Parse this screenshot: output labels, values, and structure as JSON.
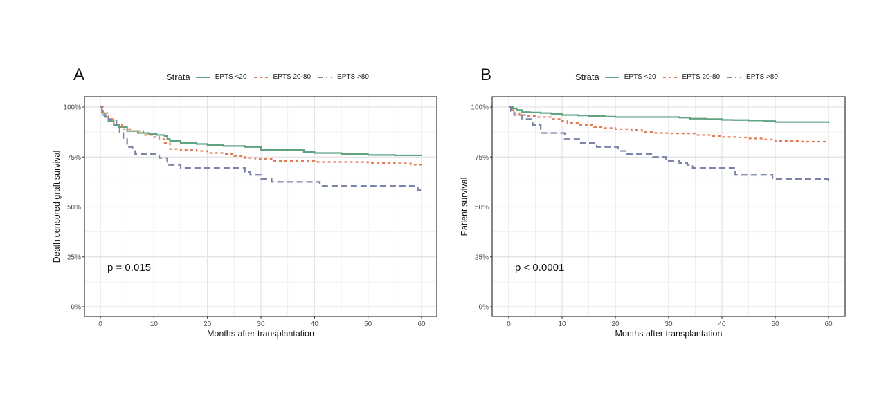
{
  "chart_data": [
    {
      "type": "line",
      "step": true,
      "panel_label": "A",
      "title": "",
      "xlabel": "Months after transplantation",
      "ylabel": "Death censored graft survival",
      "xlim": [
        0,
        60
      ],
      "ylim": [
        0,
        100
      ],
      "xticks": [
        0,
        10,
        20,
        30,
        40,
        50,
        60
      ],
      "xtick_labels": [
        "0",
        "10",
        "20",
        "30",
        "40",
        "50",
        "60"
      ],
      "yticks": [
        0,
        25,
        50,
        75,
        100
      ],
      "ytick_labels": [
        "0%",
        "25%",
        "50%",
        "75%",
        "100%"
      ],
      "grid": true,
      "legend_title": "Strata",
      "legend_position": "top",
      "annotation": "p = 0.015",
      "series": [
        {
          "name": "EPTS <20",
          "color": "#5fa382",
          "dash": "solid",
          "x": [
            0,
            0.3,
            0.8,
            1.5,
            2.5,
            3.5,
            5,
            7,
            9,
            10.5,
            12,
            12.5,
            13,
            15,
            18,
            20,
            23,
            27,
            30,
            34,
            38,
            40,
            45,
            50,
            55,
            60
          ],
          "y": [
            100,
            97,
            95,
            93,
            91,
            90,
            88,
            87,
            86.5,
            86,
            85.5,
            84,
            83,
            82,
            81.5,
            81,
            80.5,
            80,
            78.5,
            78.5,
            77.5,
            77,
            76.5,
            76,
            75.8,
            75.5
          ]
        },
        {
          "name": "EPTS 20-80",
          "color": "#e07b54",
          "dash": "dotted",
          "x": [
            0,
            0.5,
            1.5,
            2.5,
            4,
            6,
            8,
            10,
            11,
            12,
            13,
            15,
            18,
            20,
            23,
            25,
            27,
            29,
            32,
            36,
            40,
            45,
            50,
            55,
            58,
            60
          ],
          "y": [
            100,
            97,
            94,
            91,
            89,
            88,
            86,
            85,
            84,
            82,
            79,
            78.5,
            78,
            77,
            76.5,
            75.5,
            74.5,
            74,
            73,
            73,
            72.5,
            72.5,
            72,
            71.8,
            71.2,
            71
          ]
        },
        {
          "name": "EPTS >80",
          "color": "#7b84a8",
          "dash": "dashed",
          "x": [
            0,
            0.3,
            1,
            2,
            3,
            3.6,
            4.3,
            5,
            6,
            6.5,
            11,
            12.5,
            15,
            27,
            28,
            30,
            32,
            41,
            59.3,
            60
          ],
          "y": [
            100,
            96,
            94,
            93,
            91,
            87,
            84,
            80,
            78,
            76.5,
            74.5,
            71,
            69.5,
            67.5,
            66,
            64,
            62.5,
            60.5,
            58.5,
            58.5
          ]
        }
      ]
    },
    {
      "type": "line",
      "step": true,
      "panel_label": "B",
      "title": "",
      "xlabel": "Months after transplantation",
      "ylabel": "Patient survival",
      "xlim": [
        0,
        60
      ],
      "ylim": [
        0,
        100
      ],
      "xticks": [
        0,
        10,
        20,
        30,
        40,
        50,
        60
      ],
      "xtick_labels": [
        "0",
        "10",
        "20",
        "30",
        "40",
        "50",
        "60"
      ],
      "yticks": [
        0,
        25,
        50,
        75,
        100
      ],
      "ytick_labels": [
        "0%",
        "25%",
        "50%",
        "75%",
        "100%"
      ],
      "grid": true,
      "legend_title": "Strata",
      "legend_position": "top",
      "annotation": "p < 0.0001",
      "series": [
        {
          "name": "EPTS <20",
          "color": "#5fa382",
          "dash": "solid",
          "x": [
            0,
            0.8,
            1.5,
            2.5,
            4,
            6,
            8,
            10,
            13,
            15,
            18,
            20,
            25,
            30,
            32,
            34,
            37,
            40,
            42,
            45,
            48,
            50,
            55,
            60
          ],
          "y": [
            100,
            99.3,
            98.5,
            97.5,
            97.3,
            97,
            96.5,
            96,
            95.8,
            95.5,
            95.2,
            95,
            95,
            95,
            94.7,
            94.2,
            94,
            93.6,
            93.5,
            93.3,
            93,
            92.5,
            92.5,
            92
          ]
        },
        {
          "name": "EPTS 20-80",
          "color": "#e07b54",
          "dash": "dotted",
          "x": [
            0,
            0.5,
            1,
            2,
            3.5,
            5,
            8,
            10,
            11,
            13,
            16,
            18,
            20,
            23,
            25,
            27,
            30,
            35,
            38,
            40,
            43,
            45,
            48,
            50,
            55,
            60
          ],
          "y": [
            100,
            98.5,
            97,
            96,
            95.5,
            95,
            94,
            93,
            92,
            91,
            90,
            89.5,
            89,
            88.5,
            87.5,
            87,
            86.8,
            86,
            85.5,
            85,
            84.8,
            84.3,
            83.8,
            83,
            82.7,
            82.5
          ]
        },
        {
          "name": "EPTS >80",
          "color": "#7b84a8",
          "dash": "dashed",
          "x": [
            0,
            0.4,
            1,
            2.5,
            4.5,
            6,
            10.5,
            13.5,
            16.5,
            20.5,
            22,
            27,
            29.5,
            32,
            33.5,
            34.5,
            42.5,
            49.5,
            60
          ],
          "y": [
            100,
            98,
            96,
            94,
            91,
            87,
            84,
            82,
            80,
            78,
            76.5,
            75,
            73,
            72,
            71,
            69.5,
            66,
            64,
            62.5
          ]
        }
      ]
    }
  ]
}
